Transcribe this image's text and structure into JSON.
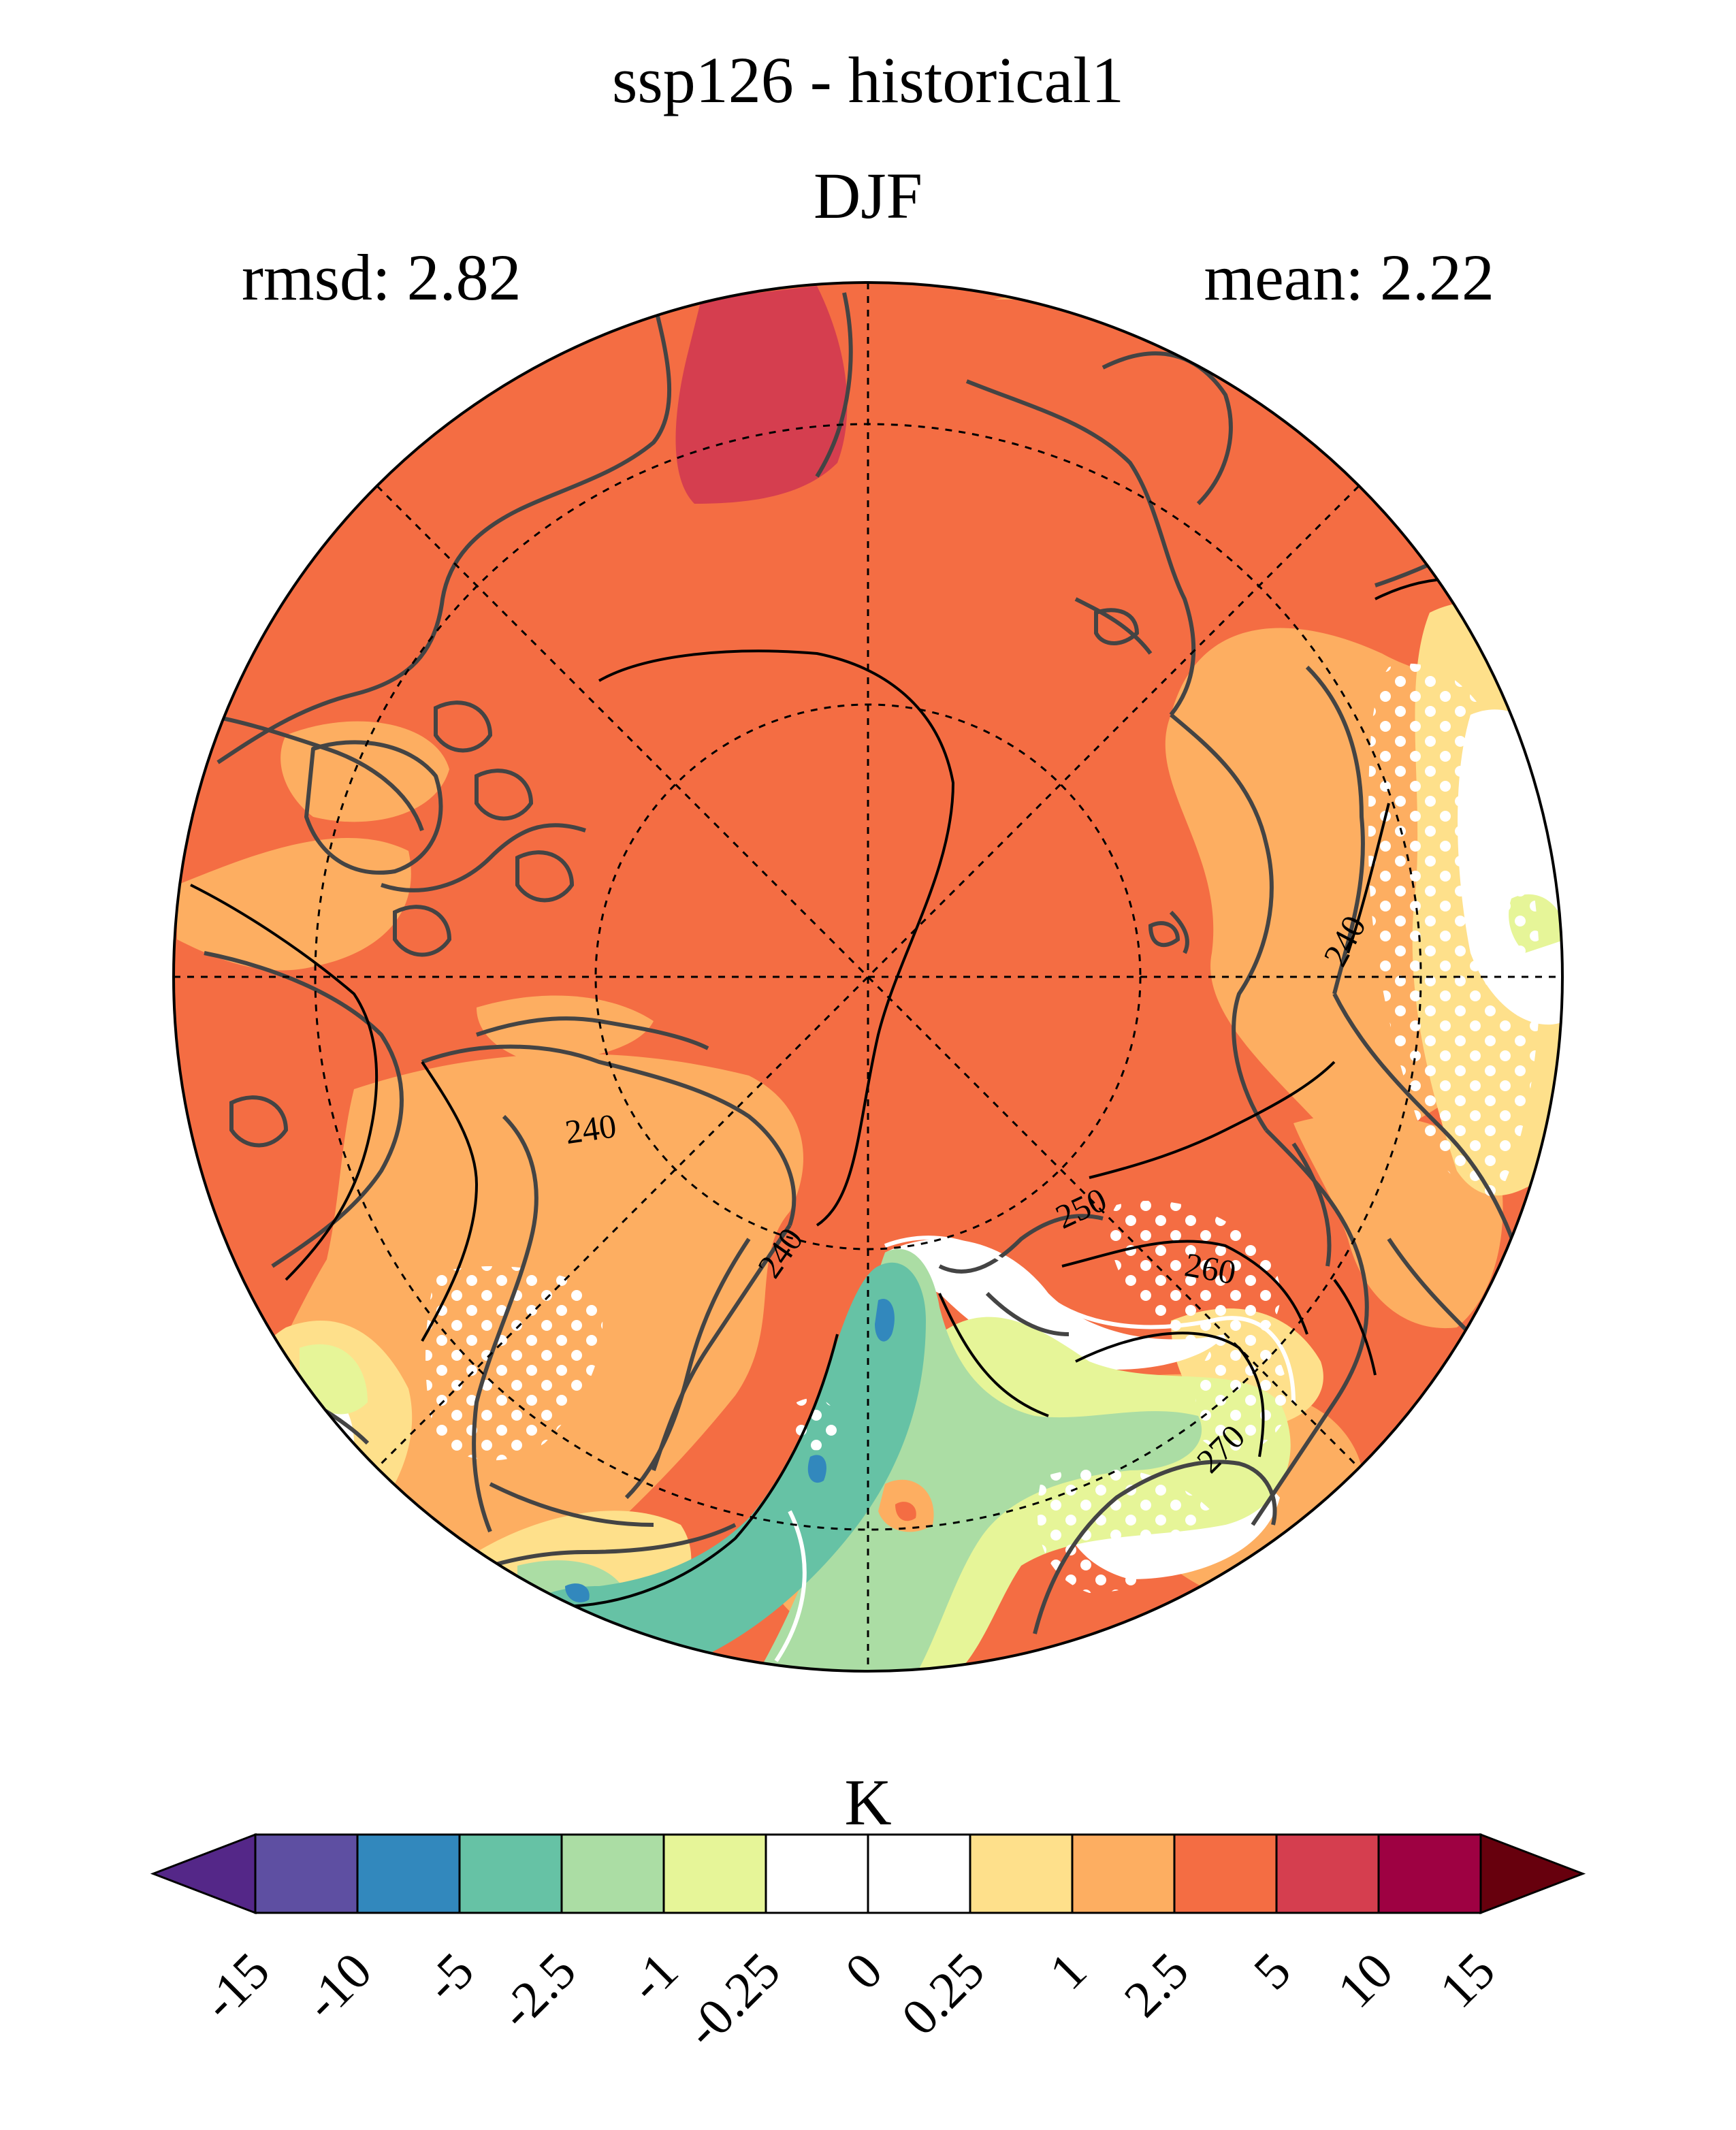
{
  "title": {
    "line1": "ssp126 - historical1",
    "line2": "DJF",
    "rmsd": "rmsd: 2.82",
    "mean": "mean: 2.22"
  },
  "colorbar": {
    "unit": "K",
    "ticks": [
      "-15",
      "-10",
      "-5",
      "-2.5",
      "-1",
      "-0.25",
      "0",
      "0.25",
      "1",
      "2.5",
      "5",
      "10",
      "15"
    ],
    "colors": [
      "#5e4fa2",
      "#3288bd",
      "#66c2a5",
      "#abdda4",
      "#e6f598",
      "#ffffff",
      "#ffffff",
      "#fee08b",
      "#fdae61",
      "#f46d43",
      "#d53e4f",
      "#9e0142"
    ],
    "under_color": "#542788",
    "over_color": "#67000d"
  },
  "map": {
    "projection": "north-polar-stereographic",
    "background_color": "#f46d43",
    "contour_labels": [
      "240",
      "240",
      "240",
      "240",
      "250",
      "260",
      "270"
    ]
  }
}
